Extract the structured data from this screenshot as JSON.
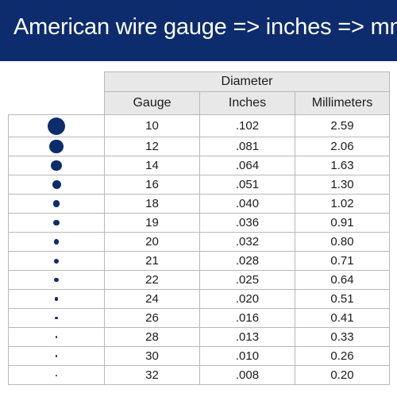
{
  "header": {
    "title": "American wire gauge => inches => mm"
  },
  "table": {
    "group_header": "Diameter",
    "columns": [
      "Gauge",
      "Inches",
      "Millimeters"
    ],
    "rows": [
      {
        "gauge": "10",
        "inches": ".102",
        "mm": "2.59"
      },
      {
        "gauge": "12",
        "inches": ".081",
        "mm": "2.06"
      },
      {
        "gauge": "14",
        "inches": ".064",
        "mm": "1.63"
      },
      {
        "gauge": "16",
        "inches": ".051",
        "mm": "1.30"
      },
      {
        "gauge": "18",
        "inches": ".040",
        "mm": "1.02"
      },
      {
        "gauge": "19",
        "inches": ".036",
        "mm": "0.91"
      },
      {
        "gauge": "20",
        "inches": ".032",
        "mm": "0.80"
      },
      {
        "gauge": "21",
        "inches": ".028",
        "mm": "0.71"
      },
      {
        "gauge": "22",
        "inches": ".025",
        "mm": "0.64"
      },
      {
        "gauge": "24",
        "inches": ".020",
        "mm": "0.51"
      },
      {
        "gauge": "26",
        "inches": ".016",
        "mm": "0.41"
      },
      {
        "gauge": "28",
        "inches": ".013",
        "mm": "0.33"
      },
      {
        "gauge": "30",
        "inches": ".010",
        "mm": "0.26"
      },
      {
        "gauge": "32",
        "inches": ".008",
        "mm": "0.20"
      }
    ]
  },
  "colors": {
    "banner": "#0d2c6e",
    "dot": "#0d2c6e",
    "header_fill": "#e8e8e8"
  }
}
